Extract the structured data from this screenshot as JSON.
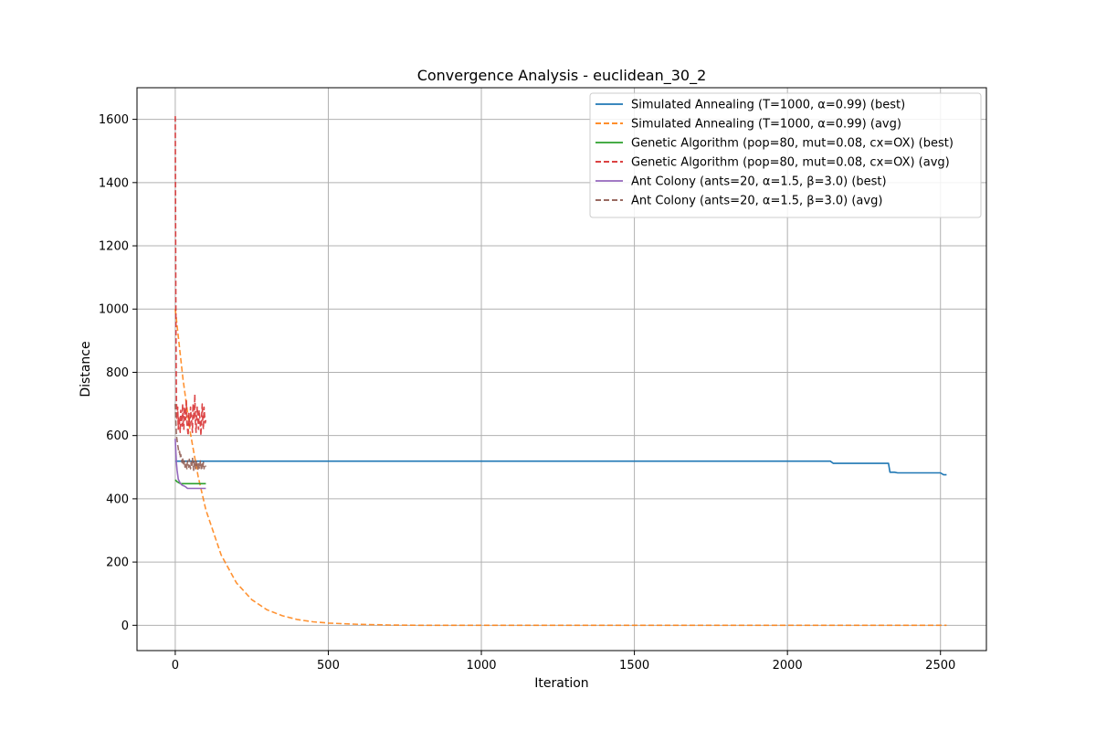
{
  "chart_data": {
    "type": "line",
    "title": "Convergence Analysis - euclidean_30_2",
    "xlabel": "Iteration",
    "ylabel": "Distance",
    "xlim": [
      -125,
      2650
    ],
    "ylim": [
      -80,
      1700
    ],
    "xticks": [
      0,
      500,
      1000,
      1500,
      2000,
      2500
    ],
    "yticks": [
      0,
      200,
      400,
      600,
      800,
      1000,
      1200,
      1400,
      1600
    ],
    "grid": true,
    "legend_position": "top-right",
    "series": [
      {
        "name": "Simulated Annealing (T=1000, α=0.99) (best)",
        "color": "#1f77b4",
        "dash": "solid",
        "x": [
          0,
          2140,
          2150,
          2330,
          2335,
          2350,
          2360,
          2500,
          2510,
          2520
        ],
        "y": [
          519,
          519,
          512,
          512,
          484,
          484,
          482,
          482,
          476,
          476
        ]
      },
      {
        "name": "Simulated Annealing (T=1000, α=0.99) (avg)",
        "color": "#ff7f0e",
        "dash": "dashed",
        "x": [
          0,
          25,
          50,
          75,
          100,
          150,
          200,
          250,
          300,
          350,
          400,
          450,
          500,
          600,
          700,
          800,
          1000,
          1500,
          2000,
          2520
        ],
        "y": [
          1000,
          780,
          605,
          470,
          365,
          222,
          134,
          81,
          49,
          30,
          18,
          11,
          7,
          3,
          1,
          0,
          0,
          0,
          0,
          0
        ]
      },
      {
        "name": "Genetic Algorithm (pop=80, mut=0.08, cx=OX) (best)",
        "color": "#2ca02c",
        "dash": "solid",
        "x": [
          0,
          5,
          10,
          15,
          20,
          100
        ],
        "y": [
          460,
          455,
          452,
          449,
          448,
          448
        ]
      },
      {
        "name": "Genetic Algorithm (pop=80, mut=0.08, cx=OX) (avg)",
        "color": "#d62728",
        "dash": "dashed",
        "x": [
          0,
          1,
          2,
          3,
          4,
          6,
          8,
          10,
          12,
          14,
          16,
          18,
          20,
          22,
          24,
          26,
          28,
          30,
          32,
          34,
          36,
          38,
          40,
          42,
          44,
          46,
          48,
          50,
          52,
          54,
          56,
          58,
          60,
          62,
          64,
          66,
          68,
          70,
          72,
          74,
          76,
          78,
          80,
          82,
          84,
          86,
          88,
          90,
          92,
          94,
          96,
          98,
          100
        ],
        "y": [
          1610,
          1320,
          980,
          820,
          710,
          650,
          690,
          620,
          660,
          640,
          610,
          680,
          650,
          630,
          700,
          640,
          620,
          690,
          660,
          650,
          710,
          640,
          620,
          600,
          670,
          650,
          630,
          690,
          660,
          640,
          610,
          700,
          680,
          650,
          730,
          640,
          610,
          670,
          690,
          650,
          620,
          680,
          660,
          630,
          600,
          660,
          700,
          640,
          620,
          690,
          660,
          640,
          650
        ]
      },
      {
        "name": "Ant Colony (ants=20, α=1.5, β=3.0) (best)",
        "color": "#9467bd",
        "dash": "solid",
        "x": [
          0,
          2,
          4,
          6,
          8,
          10,
          15,
          20,
          25,
          30,
          35,
          40,
          100
        ],
        "y": [
          590,
          545,
          512,
          490,
          475,
          462,
          452,
          445,
          442,
          440,
          437,
          433,
          433
        ]
      },
      {
        "name": "Ant Colony (ants=20, α=1.5, β=3.0) (avg)",
        "color": "#8c564b",
        "dash": "dashed",
        "x": [
          0,
          2,
          4,
          6,
          8,
          10,
          12,
          14,
          16,
          18,
          20,
          22,
          24,
          26,
          28,
          30,
          32,
          34,
          36,
          38,
          40,
          42,
          44,
          46,
          48,
          50,
          52,
          54,
          56,
          58,
          60,
          62,
          64,
          66,
          68,
          70,
          72,
          74,
          76,
          78,
          80,
          82,
          84,
          86,
          88,
          90,
          92,
          94,
          96,
          98,
          100
        ],
        "y": [
          700,
          640,
          600,
          585,
          570,
          560,
          545,
          550,
          530,
          540,
          525,
          515,
          530,
          510,
          505,
          520,
          500,
          515,
          505,
          495,
          520,
          510,
          500,
          525,
          505,
          495,
          515,
          500,
          530,
          510,
          490,
          520,
          505,
          495,
          525,
          500,
          510,
          490,
          515,
          500,
          495,
          520,
          505,
          490,
          510,
          500,
          515,
          495,
          505,
          500,
          505
        ]
      }
    ]
  }
}
